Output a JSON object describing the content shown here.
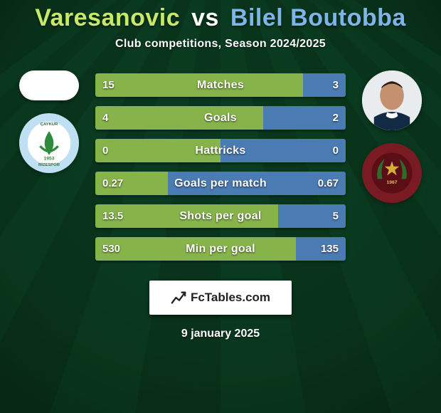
{
  "title": {
    "left": "Varesanovic",
    "separator": "vs",
    "right": "Bilel Boutobba",
    "left_color": "#c7e86a",
    "sep_color": "#ffffff",
    "right_color": "#7fb4e8"
  },
  "subtitle": "Club competitions, Season 2024/2025",
  "background": {
    "top_color": "#0a3a1e",
    "mid_color": "#0e4a2a",
    "bottom_color": "#05230f",
    "stripe_dark": "#0c3f22",
    "stripe_light": "#0f4c29"
  },
  "players": {
    "left": {
      "avatar_bg": "#ffffff"
    },
    "right": {
      "avatar_bg": "#ffffff",
      "face_color": "#c59070",
      "shirt_color": "#132a45",
      "collar_color": "#ffffff"
    }
  },
  "clubs": {
    "left": {
      "name": "Caykur Rizespor",
      "ring_color": "#bfe0f2",
      "inner_color": "#ffffff",
      "accent_green": "#2f8a3d",
      "year": "1953"
    },
    "right": {
      "name": "Hatayspor",
      "outer_color": "#7a1a22",
      "inner_color": "#5b0e15",
      "leaf_color": "#2f6b2a",
      "star_color": "#d4af37",
      "year": "1967"
    }
  },
  "bars": {
    "left_color": "#86b44a",
    "right_color": "#4b7bb3",
    "label_color": "#ffffff",
    "value_color": "#ffffff",
    "height": 33,
    "gap": 13,
    "font_size_label": 16,
    "font_size_value": 15,
    "rows": [
      {
        "label": "Matches",
        "left": "15",
        "right": "3",
        "left_pct": 83,
        "right_pct": 17
      },
      {
        "label": "Goals",
        "left": "4",
        "right": "2",
        "left_pct": 67,
        "right_pct": 33
      },
      {
        "label": "Hattricks",
        "left": "0",
        "right": "0",
        "left_pct": 50,
        "right_pct": 50
      },
      {
        "label": "Goals per match",
        "left": "0.27",
        "right": "0.67",
        "left_pct": 29,
        "right_pct": 71
      },
      {
        "label": "Shots per goal",
        "left": "13.5",
        "right": "5",
        "left_pct": 73,
        "right_pct": 27
      },
      {
        "label": "Min per goal",
        "left": "530",
        "right": "135",
        "left_pct": 80,
        "right_pct": 20
      }
    ]
  },
  "branding": {
    "text": "FcTables.com"
  },
  "date": "9 january 2025"
}
